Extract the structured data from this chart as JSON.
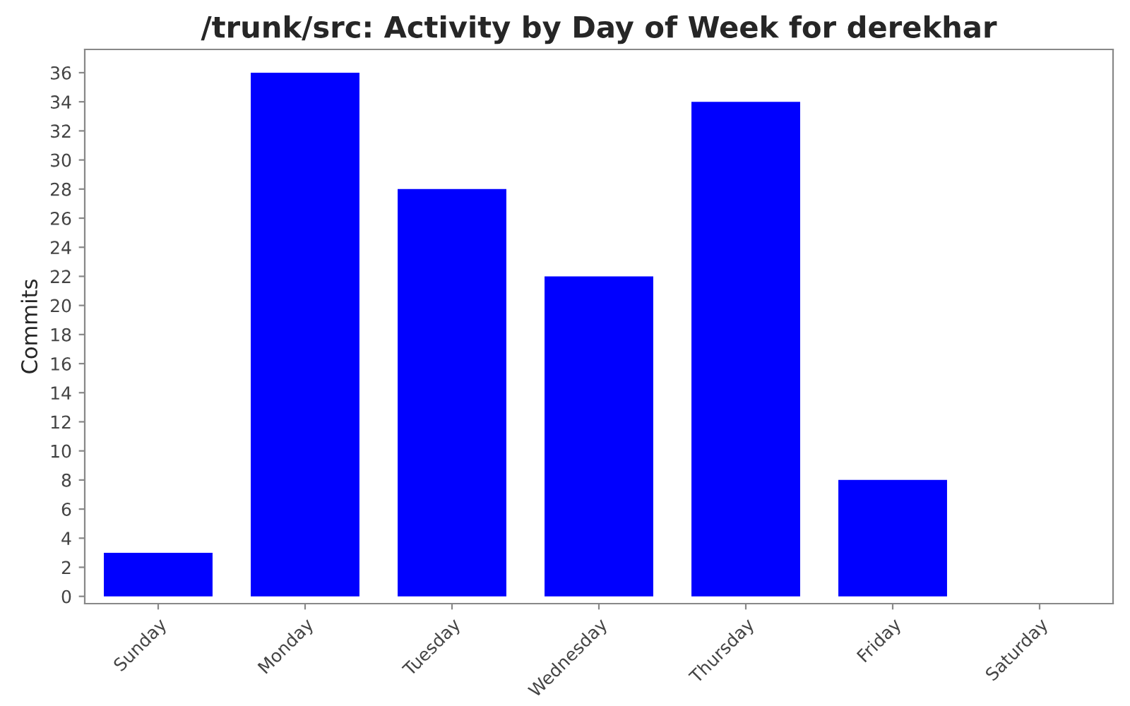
{
  "chart_data": {
    "type": "bar",
    "title": "/trunk/src: Activity by Day of Week for derekhar",
    "ylabel": "Commits",
    "categories": [
      "Sunday",
      "Monday",
      "Tuesday",
      "Wednesday",
      "Thursday",
      "Friday",
      "Saturday"
    ],
    "values": [
      3,
      36,
      28,
      22,
      34,
      8,
      0
    ],
    "color": "#0000ff",
    "ylim": [
      -0.5,
      37.6
    ],
    "yticks": [
      0,
      2,
      4,
      6,
      8,
      10,
      12,
      14,
      16,
      18,
      20,
      22,
      24,
      26,
      28,
      30,
      32,
      34,
      36
    ],
    "grid": false,
    "legend": false
  }
}
